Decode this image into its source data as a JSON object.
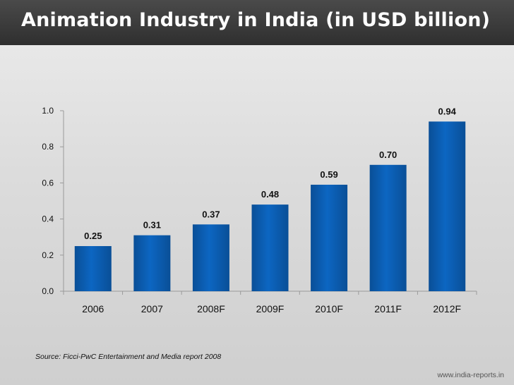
{
  "title": "Animation Industry in India (in USD billion)",
  "source": "Source: Ficci-PwC Entertainment and Media report 2008",
  "website": "www.india-reports.in",
  "chart_data": {
    "type": "bar",
    "categories": [
      "2006",
      "2007",
      "2008F",
      "2009F",
      "2010F",
      "2011F",
      "2012F"
    ],
    "values": [
      0.25,
      0.31,
      0.37,
      0.48,
      0.59,
      0.7,
      0.94
    ],
    "value_labels": [
      "0.25",
      "0.31",
      "0.37",
      "0.48",
      "0.59",
      "0.70",
      "0.94"
    ],
    "yticks": [
      "0.0",
      "0.2",
      "0.4",
      "0.6",
      "0.8",
      "1.0"
    ],
    "ytick_values": [
      0,
      0.2,
      0.4,
      0.6,
      0.8,
      1.0
    ],
    "ylim": [
      0,
      1.0
    ],
    "grid": false,
    "bar_color": "#0b5fb3"
  }
}
